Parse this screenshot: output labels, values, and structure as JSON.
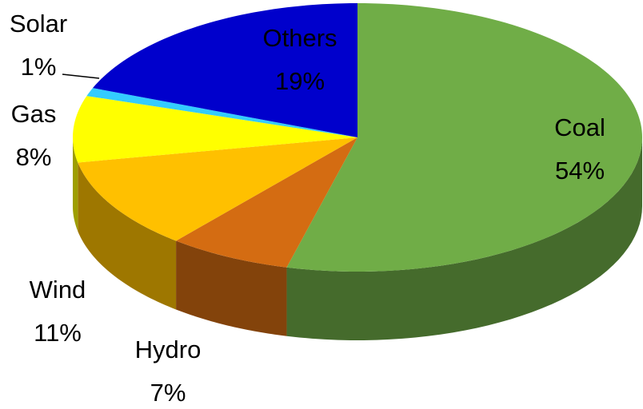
{
  "chart_data": {
    "type": "pie3d",
    "categories": [
      "Coal",
      "Hydro",
      "Wind",
      "Gas",
      "Solar",
      "Others"
    ],
    "values": [
      54,
      7,
      11,
      8,
      1,
      19
    ],
    "value_labels": [
      "54%",
      "7%",
      "11%",
      "8%",
      "1%",
      "19%"
    ],
    "colors": [
      "#70ad47",
      "#d46c12",
      "#ffc000",
      "#ffff00",
      "#33ccff",
      "#0000cc"
    ]
  }
}
